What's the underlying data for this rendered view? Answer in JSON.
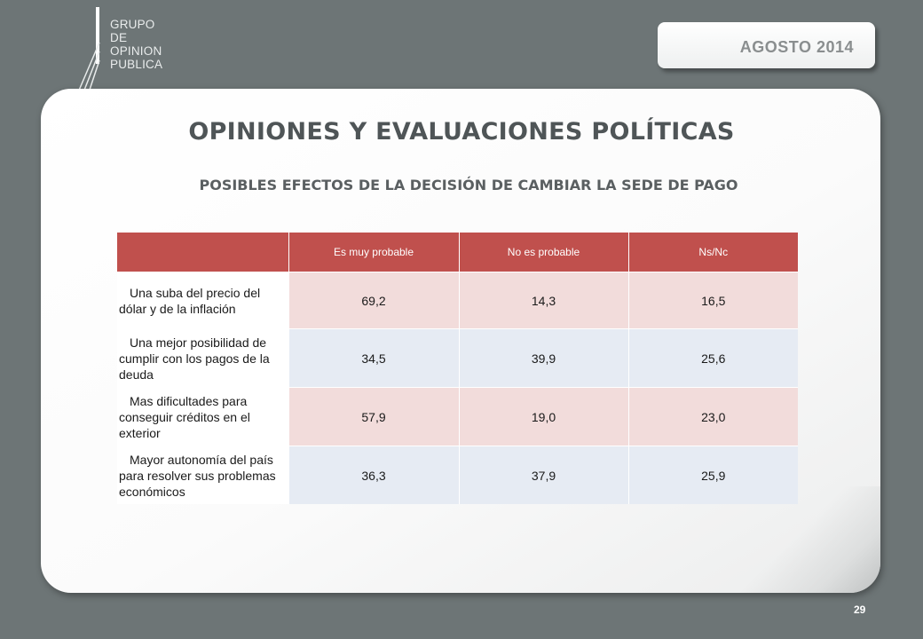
{
  "logo": {
    "lines": [
      "GRUPO",
      "DE",
      "OPINION",
      "PUBLICA"
    ]
  },
  "date_badge": "AGOSTO  2014",
  "title": "OPINIONES Y EVALUACIONES POLÍTICAS",
  "subtitle": "POSIBLES EFECTOS DE LA DECISIÓN DE CAMBIAR LA SEDE DE PAGO",
  "table": {
    "headers": [
      "",
      "Es muy probable",
      "No es probable",
      "Ns/Nc"
    ],
    "rows": [
      {
        "label": "Una suba del precio del dólar y de la inflación",
        "values": [
          "69,2",
          "14,3",
          "16,5"
        ]
      },
      {
        "label": "Una mejor posibilidad de cumplir con los pagos de la deuda",
        "values": [
          "34,5",
          "39,9",
          "25,6"
        ]
      },
      {
        "label": "Mas dificultades para conseguir créditos en el exterior",
        "values": [
          "57,9",
          "19,0",
          "23,0"
        ]
      },
      {
        "label": "Mayor autonomía del país para resolver sus problemas económicos",
        "values": [
          "36,3",
          "37,9",
          "25,9"
        ]
      }
    ]
  },
  "page_number": "29",
  "colors": {
    "background": "#6d7576",
    "header": "#c0504d",
    "row_pink": "#f2dcdb",
    "row_blue": "#e6ebf3"
  }
}
